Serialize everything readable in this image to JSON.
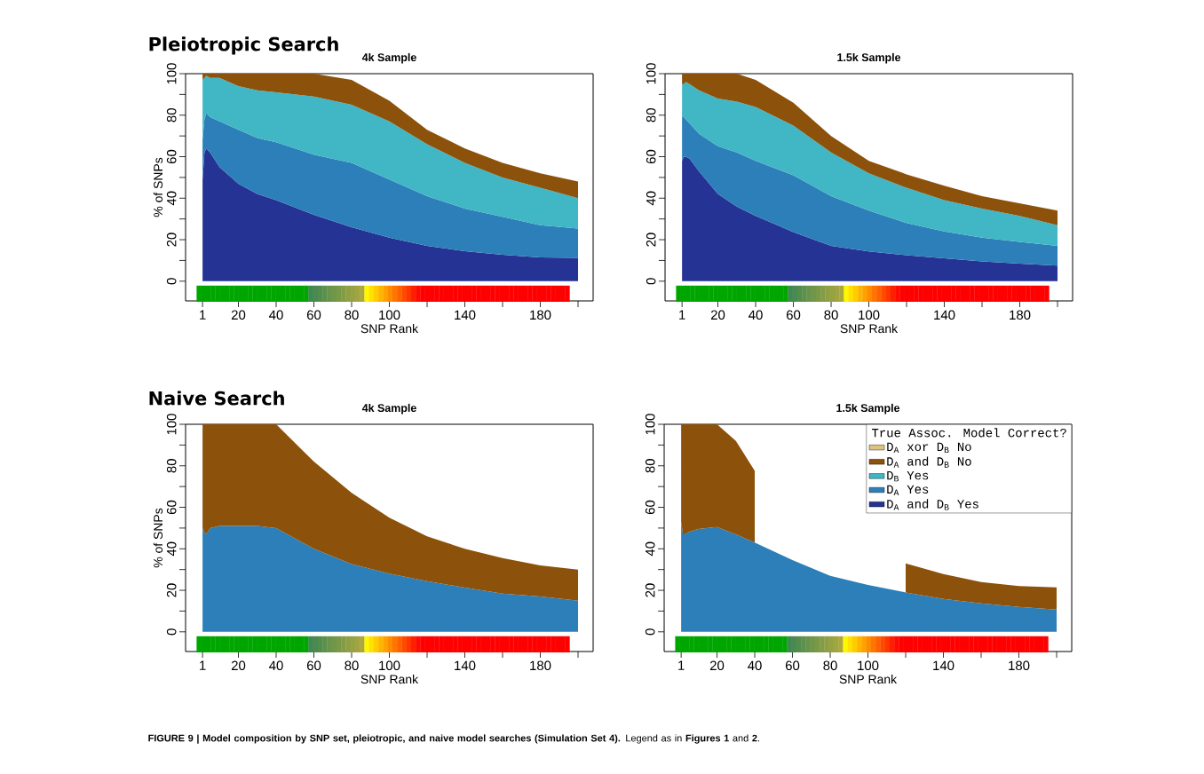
{
  "chart_data": [
    {
      "type": "area",
      "stacked": true,
      "title": "4k Sample",
      "ylabel": "% of SNPs",
      "xlabel": "SNP Rank",
      "annotations": [
        "Pleiotropic Search"
      ],
      "x": [
        1,
        2,
        3,
        5,
        10,
        20,
        30,
        40,
        60,
        80,
        100,
        120,
        140,
        160,
        180,
        200
      ],
      "xlim": [
        -8,
        208
      ],
      "ylim": [
        -9.5,
        100
      ],
      "xticks": [
        1,
        20,
        40,
        60,
        80,
        100,
        {
          "value": 120,
          "label": null
        },
        140,
        {
          "value": 160,
          "label": null
        },
        180,
        {
          "value": 200,
          "label": null
        }
      ],
      "yticks": [
        0,
        {
          "value": 10,
          "label": null
        },
        20,
        {
          "value": 30,
          "label": null
        },
        40,
        {
          "value": 50,
          "label": null
        },
        60,
        {
          "value": 70,
          "label": null
        },
        80,
        {
          "value": 90,
          "label": null
        },
        100
      ],
      "series": [
        {
          "color": "#253494",
          "values": [
            49,
            62,
            64,
            62,
            55,
            47,
            42,
            39,
            32,
            26,
            21,
            17,
            14.5,
            12.7,
            11.5,
            11.3
          ]
        },
        {
          "color": "#2c7fb8",
          "values": [
            19,
            16,
            17,
            17,
            22,
            26,
            27,
            28,
            29,
            31,
            28,
            24,
            20.5,
            18.3,
            15.5,
            14.1
          ]
        },
        {
          "color": "#41b6c4",
          "values": [
            29,
            20,
            18,
            19,
            21,
            21,
            23,
            24,
            28,
            28,
            28,
            25,
            22,
            19,
            18,
            14.6
          ]
        },
        {
          "color": "#8c510a",
          "values": [
            3,
            2,
            1,
            2,
            2,
            6,
            8,
            9,
            11,
            12,
            10,
            7,
            7,
            7,
            7,
            8
          ]
        }
      ]
    },
    {
      "type": "area",
      "stacked": true,
      "title": "1.5k Sample",
      "xlabel": "SNP Rank",
      "x": [
        1,
        2,
        3,
        5,
        10,
        20,
        30,
        40,
        60,
        80,
        100,
        120,
        140,
        160,
        180,
        200
      ],
      "xlim": [
        -8,
        208
      ],
      "ylim": [
        -9.5,
        100
      ],
      "xticks": [
        1,
        20,
        40,
        60,
        80,
        100,
        {
          "value": 120,
          "label": null
        },
        140,
        {
          "value": 160,
          "label": null
        },
        180,
        {
          "value": 200,
          "label": null
        }
      ],
      "yticks": [
        0,
        {
          "value": 10,
          "label": null
        },
        20,
        {
          "value": 30,
          "label": null
        },
        40,
        {
          "value": 50,
          "label": null
        },
        60,
        {
          "value": 70,
          "label": null
        },
        80,
        {
          "value": 90,
          "label": null
        },
        100
      ],
      "series": [
        {
          "color": "#253494",
          "values": [
            58,
            60,
            60,
            59,
            53,
            42,
            36,
            31.5,
            23.7,
            17,
            14.4,
            12.5,
            11,
            9.5,
            8.5,
            7.5
          ]
        },
        {
          "color": "#2c7fb8",
          "values": [
            21,
            19,
            18,
            17,
            18,
            23,
            26,
            26.5,
            27.3,
            24,
            19.6,
            15.5,
            13,
            11.5,
            10.5,
            9.5
          ]
        },
        {
          "color": "#41b6c4",
          "values": [
            16,
            16,
            18,
            19,
            21,
            23,
            24.5,
            26,
            24,
            21,
            18,
            17,
            15,
            14,
            12.5,
            10
          ]
        },
        {
          "color": "#8c510a",
          "values": [
            5,
            5,
            4,
            5,
            8,
            12,
            13.5,
            13,
            11,
            8,
            6,
            6.5,
            7,
            6,
            6,
            7
          ]
        }
      ]
    },
    {
      "type": "area",
      "stacked": true,
      "title": "4k Sample",
      "ylabel": "% of SNPs",
      "xlabel": "SNP Rank",
      "annotations": [
        "Naive Search",
        "**FIGURE 9 | Model composition by SNP set, pleiotropic, and naive model searches (Simulation Set 4).** Legend as in **Figures 1** and **2**."
      ],
      "x": [
        1,
        2,
        3,
        5,
        10,
        20,
        30,
        40,
        60,
        80,
        100,
        120,
        140,
        160,
        180,
        200
      ],
      "xlim": [
        -8,
        208
      ],
      "ylim": [
        -9.5,
        100
      ],
      "xticks": [
        1,
        20,
        40,
        60,
        80,
        100,
        {
          "value": 120,
          "label": null
        },
        140,
        {
          "value": 160,
          "label": null
        },
        180,
        {
          "value": 200,
          "label": null
        }
      ],
      "yticks": [
        0,
        {
          "value": 10,
          "label": null
        },
        20,
        {
          "value": 30,
          "label": null
        },
        40,
        {
          "value": 50,
          "label": null
        },
        60,
        {
          "value": 70,
          "label": null
        },
        80,
        {
          "value": 90,
          "label": null
        },
        100
      ],
      "series": [
        {
          "color": "#2c7fb8",
          "values": [
            50,
            48,
            47,
            50,
            51,
            51,
            51,
            50,
            40,
            32.6,
            28,
            24.4,
            21.3,
            18.4,
            17,
            15
          ]
        },
        {
          "color": "#8c510a",
          "values": [
            50,
            52,
            53,
            50,
            49,
            49,
            49,
            50,
            42,
            34.4,
            27,
            21.6,
            18.7,
            17.1,
            15,
            15
          ]
        }
      ]
    },
    {
      "type": "area",
      "stacked": true,
      "title": "1.5k Sample",
      "xlabel": "SNP Rank",
      "legend": "top right",
      "legend_title": "True Assoc. Model Correct?",
      "x": [
        1,
        2,
        3,
        5,
        10,
        20,
        30,
        40,
        60,
        80,
        100,
        120,
        140,
        160,
        180,
        200
      ],
      "xlim": [
        -8,
        208
      ],
      "ylim": [
        -9.5,
        100
      ],
      "xticks": [
        1,
        20,
        40,
        60,
        80,
        100,
        {
          "value": 120,
          "label": null
        },
        140,
        {
          "value": 160,
          "label": null
        },
        180,
        {
          "value": 200,
          "label": null
        }
      ],
      "yticks": [
        0,
        {
          "value": 10,
          "label": null
        },
        20,
        {
          "value": 30,
          "label": null
        },
        40,
        {
          "value": 50,
          "label": null
        },
        60,
        {
          "value": 70,
          "label": null
        },
        80,
        {
          "value": 90,
          "label": null
        },
        100
      ],
      "series": [
        {
          "name": "D$_{A}$ and D$_{B}$ Yes",
          "color": "#253494",
          "values": [
            null,
            null,
            null,
            null,
            null,
            null,
            null,
            null,
            null,
            null,
            null,
            null,
            null,
            null,
            null,
            null
          ]
        },
        {
          "name": "D$_{A}$ Yes",
          "color": "#2c7fb8",
          "values": [
            53,
            47,
            47,
            48,
            49.5,
            50.5,
            47,
            43,
            34.6,
            27,
            22.6,
            19,
            15.8,
            13.7,
            12,
            10.7
          ]
        },
        {
          "name": "D$_{B}$ Yes",
          "color": "#41b6c4",
          "values": [
            null,
            null,
            null,
            null,
            null,
            null,
            null,
            null,
            null,
            null,
            null,
            null,
            null,
            null,
            null,
            null
          ]
        },
        {
          "name": "D$_{A}$ and D$_{B}$ No",
          "color": "#8c510a",
          "values": [
            47,
            53,
            53,
            52,
            50.5,
            49.5,
            45,
            34.6,
            null,
            null,
            null,
            14,
            12,
            10.3,
            10,
            10.7
          ]
        },
        {
          "name": "D$_{A}$ xor D$_{B}$ No",
          "color": "#dfc27d",
          "values": [
            null,
            null,
            null,
            null,
            null,
            null,
            null,
            null,
            null,
            null,
            null,
            null,
            null,
            null,
            null,
            null
          ]
        }
      ]
    }
  ]
}
